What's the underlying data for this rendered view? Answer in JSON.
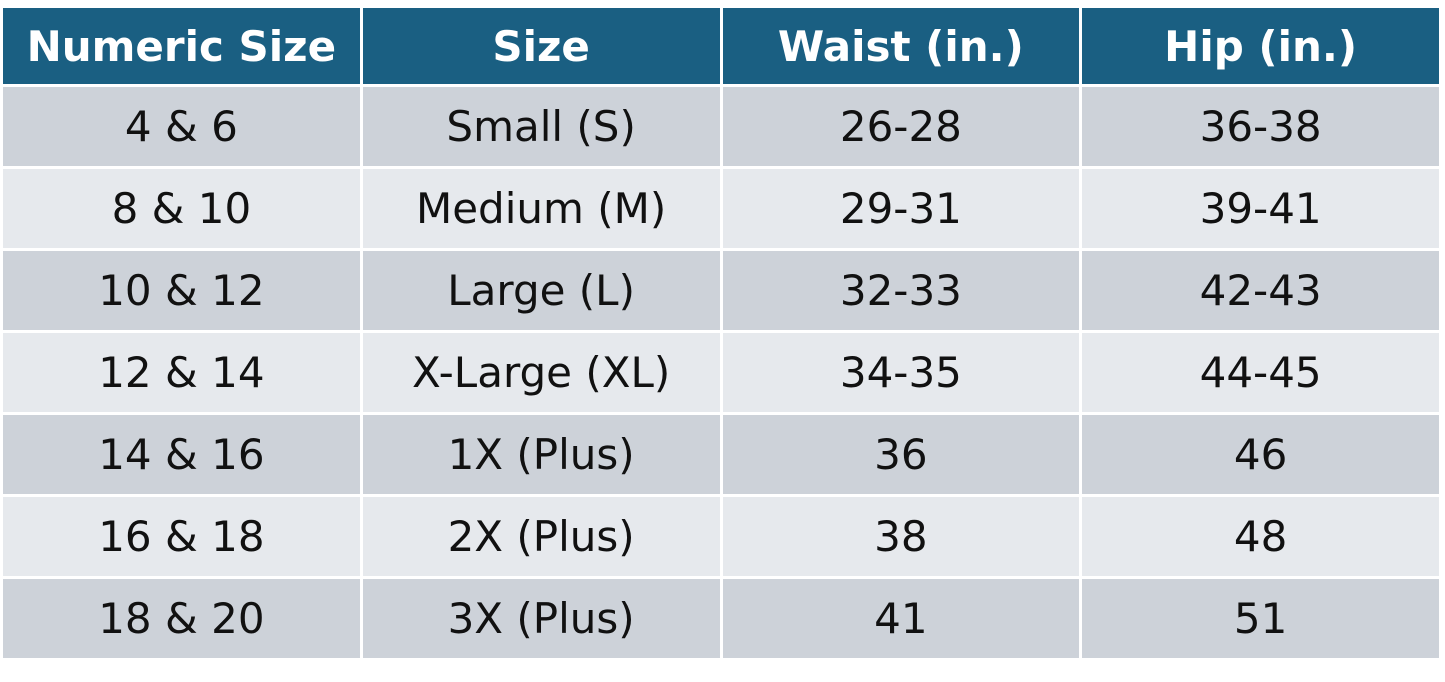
{
  "table": {
    "header": [
      "Numeric Size",
      "Size",
      "Waist (in.)",
      "Hip (in.)"
    ],
    "rows": [
      [
        "4 & 6",
        "Small (S)",
        "26-28",
        "36-38"
      ],
      [
        "8 & 10",
        "Medium (M)",
        "29-31",
        "39-41"
      ],
      [
        "10 & 12",
        "Large (L)",
        "32-33",
        "42-43"
      ],
      [
        "12 & 14",
        "X-Large (XL)",
        "34-35",
        "44-45"
      ],
      [
        "14 & 16",
        "1X (Plus)",
        "36",
        "46"
      ],
      [
        "16 & 18",
        "2X (Plus)",
        "38",
        "48"
      ],
      [
        "18 & 20",
        "3X (Plus)",
        "41",
        "51"
      ]
    ]
  }
}
